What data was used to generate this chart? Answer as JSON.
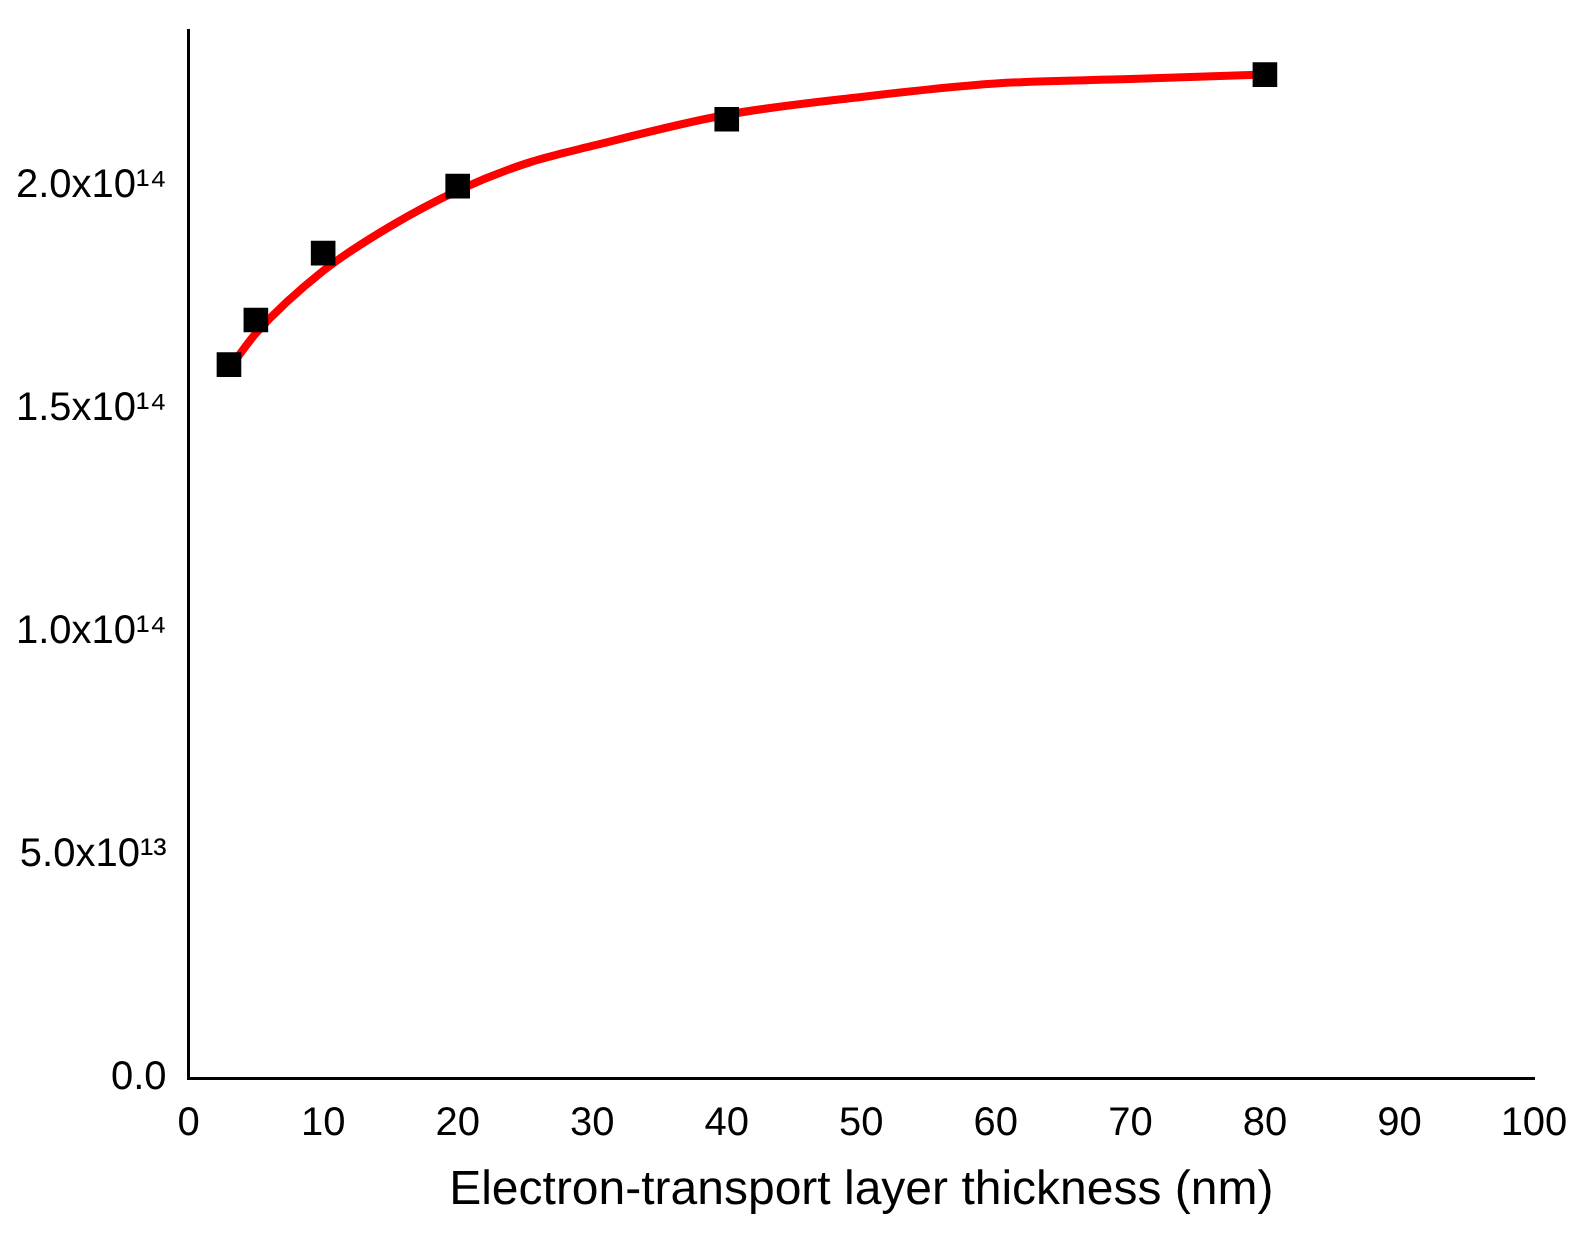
{
  "chart_data": {
    "type": "scatter",
    "xlabel": "Electron-transport layer thickness (nm)",
    "xlim": [
      0,
      100
    ],
    "xticks": [
      0,
      10,
      20,
      30,
      40,
      50,
      60,
      70,
      80,
      90,
      100
    ],
    "ylim": [
      0,
      235000000000000.0
    ],
    "yticks": [
      {
        "value": 0,
        "label": "0.0"
      },
      {
        "value": 50000000000000.0,
        "label": "5.0x10¹³"
      },
      {
        "value": 100000000000000.0,
        "label": "1.0x10¹⁴"
      },
      {
        "value": 150000000000000.0,
        "label": "1.5x10¹⁴"
      },
      {
        "value": 200000000000000.0,
        "label": "2.0x10¹⁴"
      }
    ],
    "grid": false,
    "legend": false,
    "marker": "square",
    "series": [
      {
        "type": "line",
        "color": "#ff0000",
        "marker": "none",
        "line_style": "solid",
        "x": [
          3,
          5,
          10,
          15,
          20,
          25,
          30,
          40,
          50,
          60,
          70,
          80
        ],
        "values": [
          159000000000000.0,
          167000000000000.0,
          181000000000000.0,
          191000000000000.0,
          199000000000000.0,
          205000000000000.0,
          209000000000000.0,
          216000000000000.0,
          220000000000000.0,
          223000000000000.0,
          224000000000000.0,
          225000000000000.0
        ]
      },
      {
        "type": "scatter",
        "color": "#000000",
        "x": [
          3,
          5,
          10,
          20,
          40,
          80
        ],
        "values": [
          160000000000000.0,
          170000000000000.0,
          185000000000000.0,
          200000000000000.0,
          215000000000000.0,
          225000000000000.0
        ]
      }
    ]
  }
}
